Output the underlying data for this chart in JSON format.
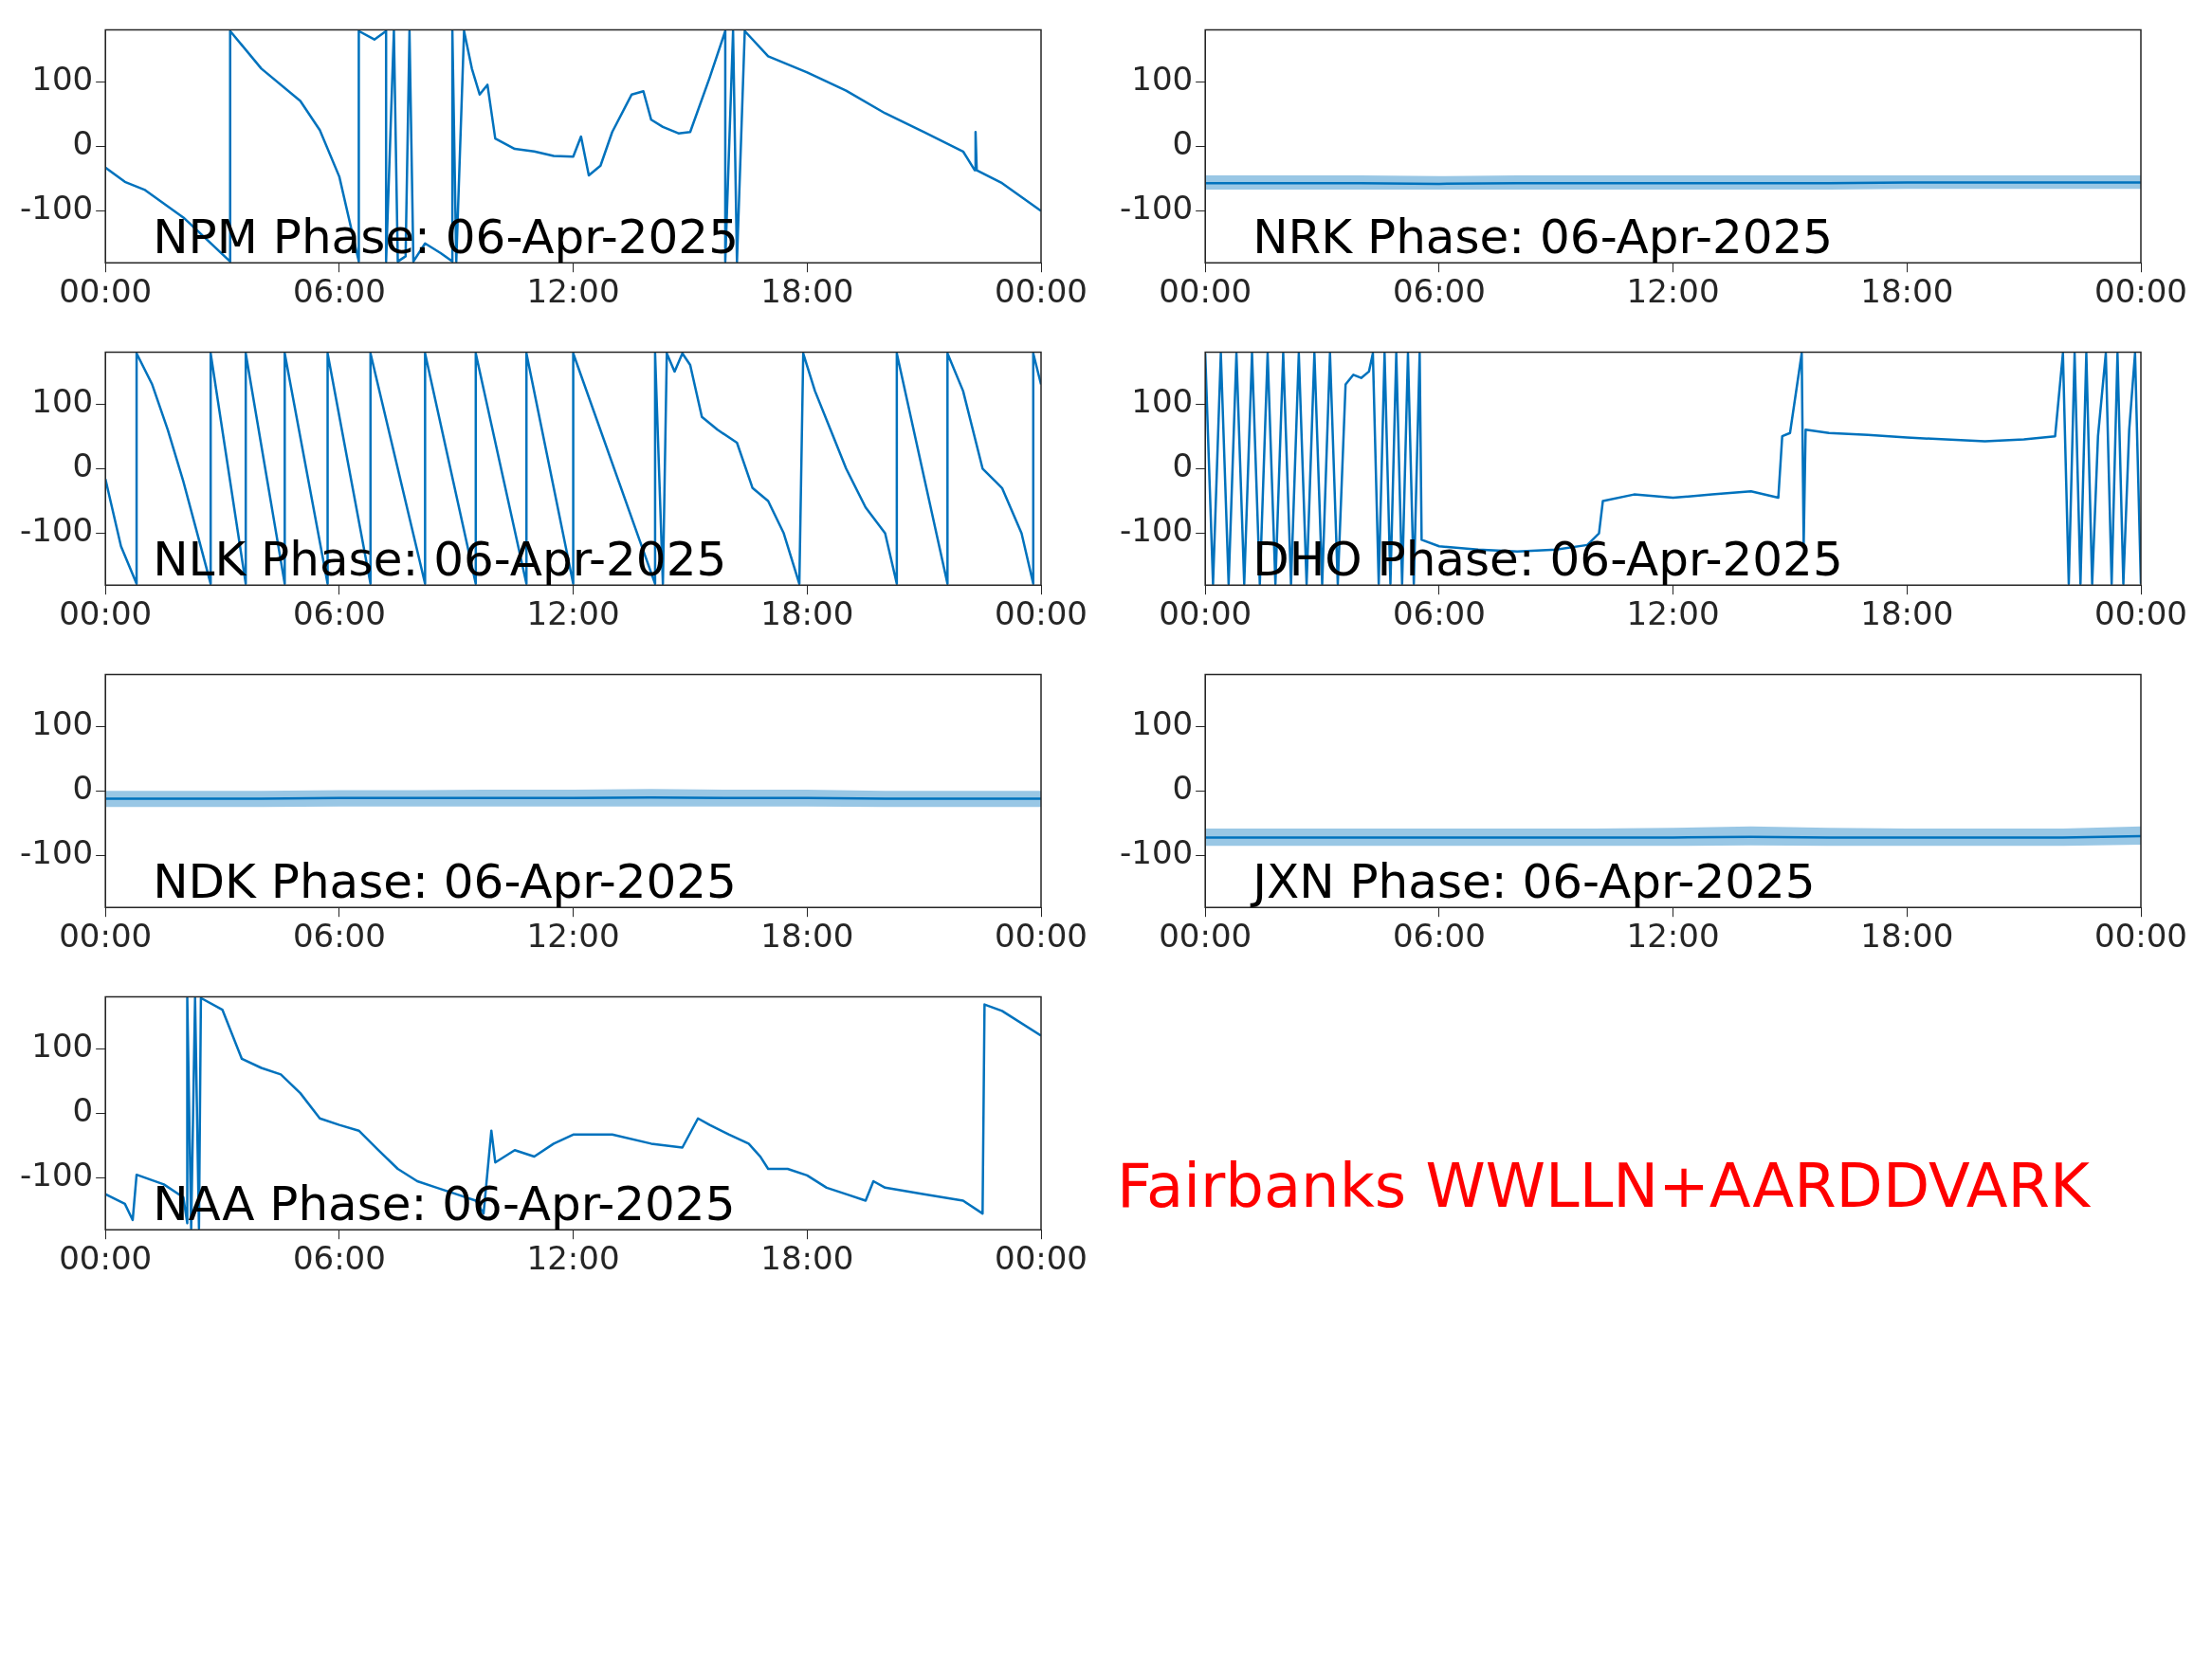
{
  "chart_data": [
    {
      "type": "line",
      "title": "NPM Phase: 06-Apr-2025",
      "x": [
        0,
        0.5,
        1,
        2,
        3.2,
        3.2,
        4,
        5,
        5.5,
        6,
        6.5,
        6.5,
        6.9,
        7.2,
        7.2,
        7.4,
        7.5,
        7.7,
        7.8,
        7.9,
        8.2,
        8.6,
        8.9,
        8.9,
        9.0,
        9.2,
        9.4,
        9.6,
        9.8,
        10,
        10.5,
        11,
        11.5,
        12,
        12.2,
        12.4,
        12.7,
        13,
        13.5,
        13.8,
        14,
        14.3,
        14.7,
        15,
        15.5,
        15.9,
        15.9,
        16.1,
        16.2,
        16.4,
        17,
        18,
        19,
        20,
        21,
        22,
        22.3,
        22.32,
        22.35,
        23,
        24
      ],
      "series": [
        {
          "color": "#0072bd",
          "values": [
            -33,
            -55,
            -67,
            -110,
            -178,
            178,
            120,
            70,
            25,
            -47,
            -178,
            178,
            165,
            178,
            -178,
            178,
            -178,
            -170,
            178,
            -178,
            -150,
            -165,
            -178,
            178,
            -178,
            178,
            120,
            80,
            95,
            12,
            -4,
            -8,
            -15,
            -16,
            15,
            -45,
            -30,
            22,
            80,
            85,
            41,
            30,
            20,
            22,
            106,
            178,
            -178,
            178,
            -178,
            178,
            139,
            114,
            86,
            51,
            22,
            -8,
            -37,
            22,
            -37,
            -57,
            -100
          ]
        }
      ],
      "xlim": [
        0,
        24
      ],
      "xticks": [
        {
          "value": 0,
          "label": "00:00"
        },
        {
          "value": 6,
          "label": "06:00"
        },
        {
          "value": 12,
          "label": "12:00"
        },
        {
          "value": 18,
          "label": "18:00"
        },
        {
          "value": 24,
          "label": "00:00"
        }
      ],
      "ylim": [
        -180,
        180
      ],
      "yticks": [
        -100,
        0,
        100
      ]
    },
    {
      "type": "line",
      "title": "NRK Phase: 06-Apr-2025",
      "x": [
        0,
        2,
        4,
        6,
        8,
        10,
        12,
        14,
        16,
        18,
        20,
        22,
        24
      ],
      "series": [
        {
          "color": "#0072bd",
          "values": [
            -57,
            -57,
            -57,
            -58,
            -57,
            -57,
            -57,
            -57,
            -57,
            -56,
            -56,
            -56,
            -56
          ],
          "lower": [
            -67,
            -67,
            -67,
            -67,
            -67,
            -67,
            -67,
            -67,
            -67,
            -66,
            -66,
            -66,
            -66
          ],
          "upper": [
            -45,
            -45,
            -45,
            -46,
            -45,
            -45,
            -45,
            -45,
            -45,
            -45,
            -45,
            -45,
            -45
          ]
        }
      ],
      "xlim": [
        0,
        24
      ],
      "xticks": [
        {
          "value": 0,
          "label": "00:00"
        },
        {
          "value": 6,
          "label": "06:00"
        },
        {
          "value": 12,
          "label": "12:00"
        },
        {
          "value": 18,
          "label": "18:00"
        },
        {
          "value": 24,
          "label": "00:00"
        }
      ],
      "ylim": [
        -180,
        180
      ],
      "yticks": [
        -100,
        0,
        100
      ]
    },
    {
      "type": "line",
      "title": "NLK Phase: 06-Apr-2025",
      "x": [
        0,
        0.4,
        0.8,
        0.8,
        1.2,
        1.6,
        2,
        2.4,
        2.7,
        2.7,
        3.6,
        3.6,
        4.6,
        4.6,
        5.7,
        5.7,
        6.8,
        6.8,
        8.2,
        8.2,
        9.5,
        9.5,
        10.8,
        10.8,
        12,
        12,
        14.1,
        14.1,
        14.3,
        14.4,
        14.6,
        14.8,
        15,
        15.3,
        15.7,
        16.2,
        16.6,
        17,
        17.4,
        17.8,
        17.9,
        18.2,
        18.6,
        19,
        19.5,
        20,
        20.3,
        20.3,
        21.6,
        21.6,
        22,
        22.5,
        23,
        23.5,
        23.8,
        23.8,
        24
      ],
      "series": [
        {
          "color": "#0072bd",
          "values": [
            -16,
            -120,
            -178,
            178,
            130,
            60,
            -20,
            -110,
            -178,
            178,
            -178,
            178,
            -178,
            178,
            -178,
            178,
            -178,
            178,
            -178,
            178,
            -178,
            178,
            -178,
            178,
            -178,
            178,
            -178,
            178,
            -178,
            178,
            150,
            178,
            160,
            80,
            60,
            40,
            -30,
            -50,
            -100,
            -178,
            178,
            120,
            60,
            0,
            -60,
            -100,
            -178,
            178,
            -178,
            178,
            120,
            0,
            -30,
            -100,
            -178,
            178,
            130
          ]
        }
      ],
      "xlim": [
        0,
        24
      ],
      "xticks": [
        {
          "value": 0,
          "label": "00:00"
        },
        {
          "value": 6,
          "label": "06:00"
        },
        {
          "value": 12,
          "label": "12:00"
        },
        {
          "value": 18,
          "label": "18:00"
        },
        {
          "value": 24,
          "label": "00:00"
        }
      ],
      "ylim": [
        -180,
        180
      ],
      "yticks": [
        -100,
        0,
        100
      ]
    },
    {
      "type": "line",
      "title": "DHO Phase: 06-Apr-2025",
      "x": [
        0,
        0.2,
        0.4,
        0.6,
        0.8,
        1,
        1.2,
        1.4,
        1.6,
        1.8,
        2,
        2.2,
        2.4,
        2.6,
        2.8,
        3,
        3.2,
        3.4,
        3.6,
        3.8,
        4,
        4.2,
        4.3,
        4.45,
        4.6,
        4.75,
        4.9,
        5.05,
        5.2,
        5.35,
        5.5,
        5.55,
        6,
        7,
        8,
        9,
        9.8,
        10.1,
        10.2,
        11,
        12,
        13,
        14,
        14.7,
        14.8,
        15,
        15.3,
        15.35,
        15.4,
        16,
        17,
        18,
        19,
        20,
        21,
        21.8,
        22,
        22.15,
        22.3,
        22.45,
        22.6,
        22.75,
        22.9,
        23.1,
        23.25,
        23.4,
        23.55,
        23.7,
        23.85,
        24
      ],
      "series": [
        {
          "color": "#0072bd",
          "values": [
            178,
            -178,
            178,
            -178,
            178,
            -178,
            178,
            -178,
            178,
            -178,
            178,
            -178,
            178,
            -178,
            178,
            -178,
            178,
            -178,
            130,
            145,
            140,
            150,
            178,
            -178,
            178,
            -178,
            178,
            -178,
            178,
            -178,
            178,
            -110,
            -120,
            -125,
            -128,
            -125,
            -118,
            -100,
            -50,
            -40,
            -45,
            -40,
            -35,
            -45,
            50,
            55,
            178,
            -120,
            60,
            55,
            52,
            48,
            45,
            42,
            45,
            50,
            178,
            -178,
            178,
            -178,
            178,
            -178,
            50,
            178,
            -178,
            178,
            -178,
            60,
            178,
            -178
          ]
        }
      ],
      "xlim": [
        0,
        24
      ],
      "xticks": [
        {
          "value": 0,
          "label": "00:00"
        },
        {
          "value": 6,
          "label": "06:00"
        },
        {
          "value": 12,
          "label": "12:00"
        },
        {
          "value": 18,
          "label": "18:00"
        },
        {
          "value": 24,
          "label": "00:00"
        }
      ],
      "ylim": [
        -180,
        180
      ],
      "yticks": [
        -100,
        0,
        100
      ]
    },
    {
      "type": "line",
      "title": "NDK Phase: 06-Apr-2025",
      "x": [
        0,
        2,
        4,
        6,
        8,
        10,
        12,
        14,
        16,
        18,
        20,
        22,
        24
      ],
      "series": [
        {
          "color": "#0072bd",
          "values": [
            -12,
            -12,
            -12,
            -11,
            -11,
            -11,
            -11,
            -10,
            -11,
            -11,
            -12,
            -12,
            -12
          ],
          "lower": [
            -25,
            -25,
            -25,
            -24,
            -24,
            -24,
            -24,
            -24,
            -24,
            -24,
            -25,
            -25,
            -25
          ],
          "upper": [
            0,
            0,
            0,
            1,
            1,
            2,
            2,
            3,
            2,
            2,
            0,
            0,
            0
          ]
        }
      ],
      "xlim": [
        0,
        24
      ],
      "xticks": [
        {
          "value": 0,
          "label": "00:00"
        },
        {
          "value": 6,
          "label": "06:00"
        },
        {
          "value": 12,
          "label": "12:00"
        },
        {
          "value": 18,
          "label": "18:00"
        },
        {
          "value": 24,
          "label": "00:00"
        }
      ],
      "ylim": [
        -180,
        180
      ],
      "yticks": [
        -100,
        0,
        100
      ]
    },
    {
      "type": "line",
      "title": "JXN Phase: 06-Apr-2025",
      "x": [
        0,
        2,
        4,
        6,
        8,
        10,
        12,
        14,
        16,
        18,
        20,
        22,
        24
      ],
      "series": [
        {
          "color": "#0072bd",
          "values": [
            -72,
            -72,
            -72,
            -72,
            -72,
            -72,
            -72,
            -71,
            -72,
            -72,
            -72,
            -72,
            -70
          ],
          "lower": [
            -85,
            -85,
            -85,
            -85,
            -85,
            -85,
            -85,
            -84,
            -85,
            -85,
            -85,
            -85,
            -83
          ],
          "upper": [
            -58,
            -58,
            -58,
            -58,
            -58,
            -58,
            -57,
            -55,
            -57,
            -58,
            -58,
            -58,
            -55
          ]
        }
      ],
      "xlim": [
        0,
        24
      ],
      "xticks": [
        {
          "value": 0,
          "label": "00:00"
        },
        {
          "value": 6,
          "label": "06:00"
        },
        {
          "value": 12,
          "label": "12:00"
        },
        {
          "value": 18,
          "label": "18:00"
        },
        {
          "value": 24,
          "label": "00:00"
        }
      ],
      "ylim": [
        -180,
        180
      ],
      "yticks": [
        -100,
        0,
        100
      ]
    },
    {
      "type": "line",
      "title": "NAA Phase: 06-Apr-2025",
      "x": [
        0,
        0.5,
        0.7,
        0.8,
        1.5,
        2.0,
        2.1,
        2.1,
        2.2,
        2.3,
        2.4,
        2.45,
        3,
        3.5,
        4,
        4.5,
        5,
        5.5,
        6,
        6.5,
        7,
        7.5,
        8,
        8.5,
        9,
        9.5,
        9.7,
        9.9,
        10,
        10.5,
        11,
        11.5,
        12,
        13,
        14,
        14.8,
        15.2,
        15.5,
        16,
        16.5,
        16.8,
        17,
        17.5,
        18,
        18.5,
        19,
        19.5,
        19.7,
        20,
        21,
        22,
        22.5,
        22.55,
        23,
        24
      ],
      "series": [
        {
          "color": "#0072bd",
          "values": [
            -125,
            -140,
            -165,
            -95,
            -110,
            -130,
            -170,
            178,
            -178,
            178,
            -178,
            178,
            160,
            84,
            70,
            60,
            31,
            -8,
            -18,
            -27,
            -57,
            -86,
            -105,
            -115,
            -125,
            -135,
            -155,
            -27,
            -76,
            -57,
            -67,
            -47,
            -33,
            -33,
            -47,
            -53,
            -8,
            -18,
            -33,
            -47,
            -67,
            -86,
            -86,
            -96,
            -115,
            -125,
            -135,
            -105,
            -115,
            -125,
            -135,
            -155,
            168,
            158,
            120
          ]
        }
      ],
      "xlim": [
        0,
        24
      ],
      "xticks": [
        {
          "value": 0,
          "label": "00:00"
        },
        {
          "value": 6,
          "label": "06:00"
        },
        {
          "value": 12,
          "label": "12:00"
        },
        {
          "value": 18,
          "label": "18:00"
        },
        {
          "value": 24,
          "label": "00:00"
        }
      ],
      "ylim": [
        -180,
        180
      ],
      "yticks": [
        -100,
        0,
        100
      ]
    },
    {
      "type": "other",
      "title": "Fairbanks WWLLN+AARDDVARK",
      "color": "#ff0000"
    }
  ]
}
